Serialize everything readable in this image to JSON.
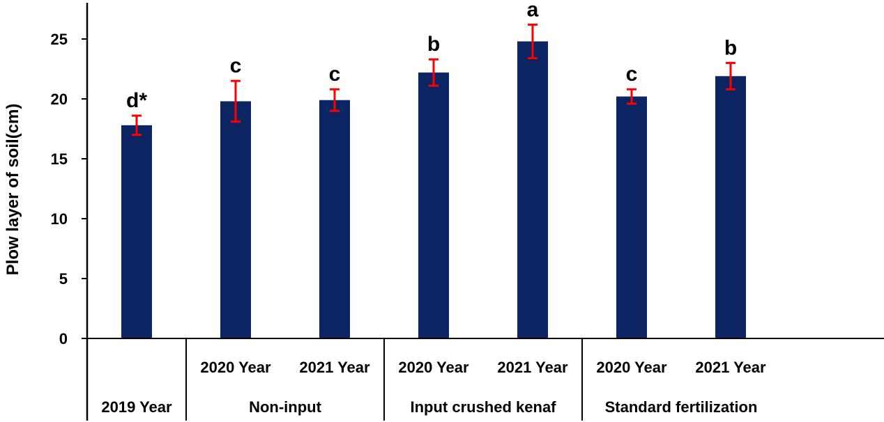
{
  "chart_data": {
    "type": "bar",
    "ylabel": "Plow layer of soil(cm)",
    "ylim": [
      0,
      27
    ],
    "yticks": [
      0,
      5,
      10,
      15,
      20,
      25
    ],
    "grid": false,
    "bar_color": "#0c2461",
    "error_color": "#ff0000",
    "categories": [
      {
        "year": "",
        "group": "2019 Year"
      },
      {
        "year": "2020 Year",
        "group": "Non-input"
      },
      {
        "year": "2021 Year",
        "group": "Non-input"
      },
      {
        "year": "2020 Year",
        "group": "Input crushed kenaf"
      },
      {
        "year": "2021 Year",
        "group": "Input crushed kenaf"
      },
      {
        "year": "2020 Year",
        "group": "Standard fertilization"
      },
      {
        "year": "2021 Year",
        "group": "Standard fertilization"
      }
    ],
    "groups": [
      "2019 Year",
      "Non-input",
      "Input crushed kenaf",
      "Standard fertilization"
    ],
    "values": [
      17.8,
      19.8,
      19.9,
      22.2,
      24.8,
      20.2,
      21.9
    ],
    "errors": [
      0.8,
      1.7,
      0.9,
      1.1,
      1.4,
      0.6,
      1.1
    ],
    "significance": [
      "d*",
      "c",
      "c",
      "b",
      "a",
      "c",
      "b"
    ]
  }
}
